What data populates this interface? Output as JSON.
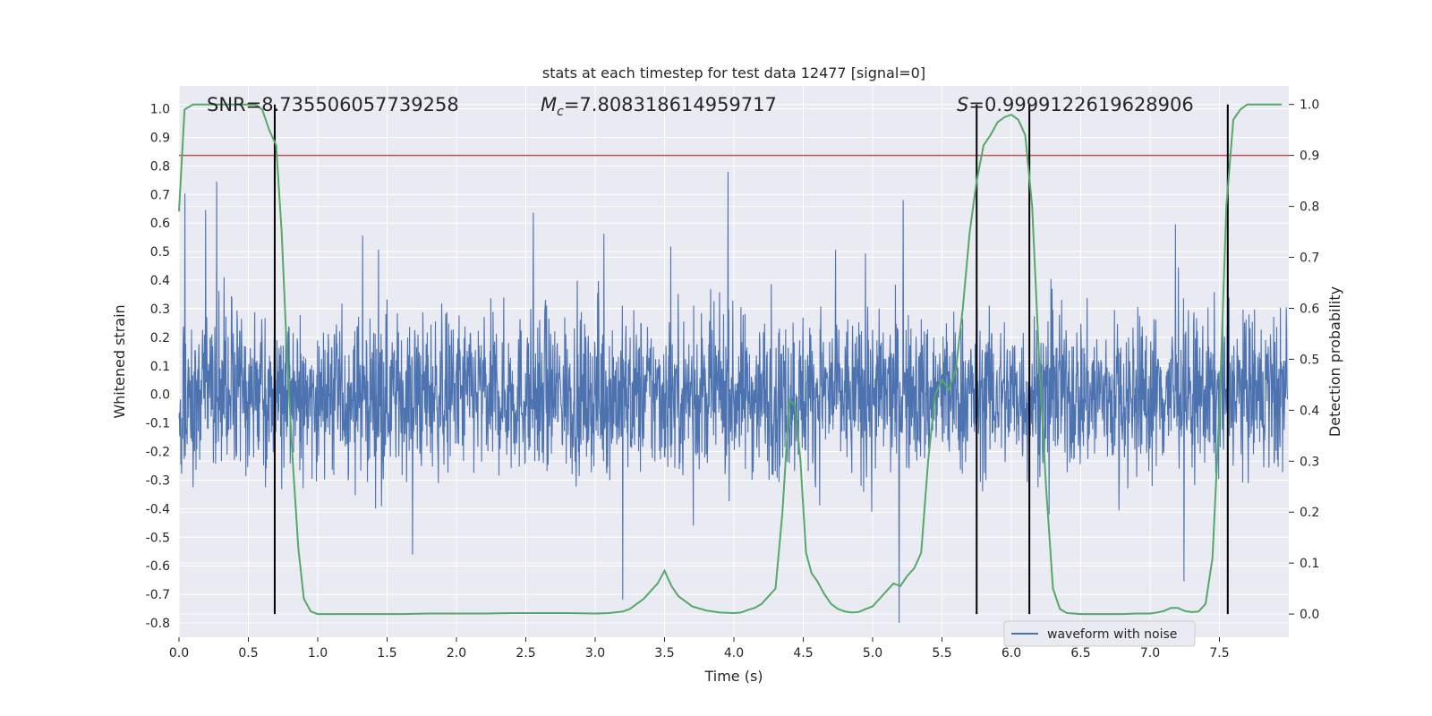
{
  "chart_data": {
    "type": "line",
    "title": "stats at each timestep for test data 12477 [signal=0]",
    "xlabel": "Time (s)",
    "ylabel": "Whitened strain",
    "y2label": "Detection probability",
    "xlim": [
      0,
      8
    ],
    "ylim": [
      -0.85,
      1.08
    ],
    "y2lim": [
      -0.0455,
      1.0364
    ],
    "xticks": [
      "0.0",
      "0.5",
      "1.0",
      "1.5",
      "2.0",
      "2.5",
      "3.0",
      "3.5",
      "4.0",
      "4.5",
      "5.0",
      "5.5",
      "6.0",
      "6.5",
      "7.0",
      "7.5"
    ],
    "yticks": [
      "-0.8",
      "-0.7",
      "-0.6",
      "-0.5",
      "-0.4",
      "-0.3",
      "-0.2",
      "-0.1",
      "0.0",
      "0.1",
      "0.2",
      "0.3",
      "0.4",
      "0.5",
      "0.6",
      "0.7",
      "0.8",
      "0.9",
      "1.0"
    ],
    "y2ticks": [
      "0.0",
      "0.1",
      "0.2",
      "0.3",
      "0.4",
      "0.5",
      "0.6",
      "0.7",
      "0.8",
      "0.9",
      "1.0"
    ],
    "grid": true,
    "legend_position": "lower-right",
    "annotations": {
      "snr": "SNR=8.735506057739258",
      "mc_symbol": "M",
      "mc_sub": "c",
      "mc_value": "=7.808318614959717",
      "s_symbol": "S",
      "s_value": "=0.9999122619628906"
    },
    "threshold": 0.9,
    "detection_times": [
      0.69,
      5.75,
      6.13,
      7.56
    ],
    "series": [
      {
        "name": "waveform with noise",
        "color": "#4c72b0",
        "noise_amplitude": 0.25
      },
      {
        "color": "#55a868",
        "axis": "right",
        "x": [
          0.0,
          0.04,
          0.1,
          0.15,
          0.2,
          0.3,
          0.4,
          0.5,
          0.55,
          0.6,
          0.65,
          0.7,
          0.74,
          0.78,
          0.82,
          0.86,
          0.9,
          0.95,
          1.0,
          1.2,
          1.4,
          1.6,
          1.8,
          2.0,
          2.2,
          2.4,
          2.6,
          2.8,
          3.0,
          3.1,
          3.2,
          3.25,
          3.3,
          3.35,
          3.4,
          3.45,
          3.5,
          3.55,
          3.6,
          3.7,
          3.8,
          3.9,
          4.0,
          4.05,
          4.1,
          4.15,
          4.2,
          4.25,
          4.3,
          4.35,
          4.4,
          4.44,
          4.48,
          4.52,
          4.56,
          4.6,
          4.65,
          4.7,
          4.75,
          4.8,
          4.85,
          4.9,
          4.95,
          5.0,
          5.05,
          5.1,
          5.15,
          5.2,
          5.25,
          5.3,
          5.35,
          5.4,
          5.45,
          5.5,
          5.55,
          5.6,
          5.65,
          5.7,
          5.75,
          5.8,
          5.85,
          5.9,
          5.95,
          6.0,
          6.05,
          6.1,
          6.15,
          6.2,
          6.25,
          6.3,
          6.35,
          6.4,
          6.5,
          6.6,
          6.7,
          6.8,
          6.9,
          7.0,
          7.05,
          7.1,
          7.15,
          7.2,
          7.25,
          7.3,
          7.35,
          7.4,
          7.45,
          7.5,
          7.55,
          7.6,
          7.65,
          7.7,
          7.75,
          7.8,
          7.85,
          7.9,
          7.95
        ],
        "y": [
          0.79,
          0.99,
          1.0,
          1.0,
          1.0,
          1.0,
          1.0,
          1.0,
          1.0,
          0.99,
          0.95,
          0.92,
          0.75,
          0.5,
          0.3,
          0.13,
          0.03,
          0.005,
          0.0,
          0.0,
          0.0,
          0.0,
          0.001,
          0.001,
          0.001,
          0.002,
          0.002,
          0.002,
          0.001,
          0.002,
          0.005,
          0.01,
          0.02,
          0.03,
          0.045,
          0.06,
          0.085,
          0.055,
          0.035,
          0.015,
          0.007,
          0.003,
          0.002,
          0.003,
          0.008,
          0.012,
          0.02,
          0.035,
          0.05,
          0.2,
          0.42,
          0.41,
          0.3,
          0.12,
          0.08,
          0.065,
          0.04,
          0.02,
          0.01,
          0.005,
          0.003,
          0.004,
          0.01,
          0.015,
          0.03,
          0.045,
          0.06,
          0.055,
          0.075,
          0.09,
          0.12,
          0.3,
          0.43,
          0.46,
          0.44,
          0.48,
          0.6,
          0.75,
          0.85,
          0.92,
          0.94,
          0.965,
          0.975,
          0.98,
          0.97,
          0.94,
          0.8,
          0.5,
          0.25,
          0.05,
          0.01,
          0.002,
          0.0,
          0.0,
          0.0,
          0.0,
          0.001,
          0.001,
          0.003,
          0.006,
          0.012,
          0.012,
          0.006,
          0.004,
          0.005,
          0.02,
          0.11,
          0.4,
          0.8,
          0.97,
          0.99,
          1.0,
          1.0,
          1.0,
          1.0,
          1.0,
          1.0
        ]
      }
    ]
  }
}
